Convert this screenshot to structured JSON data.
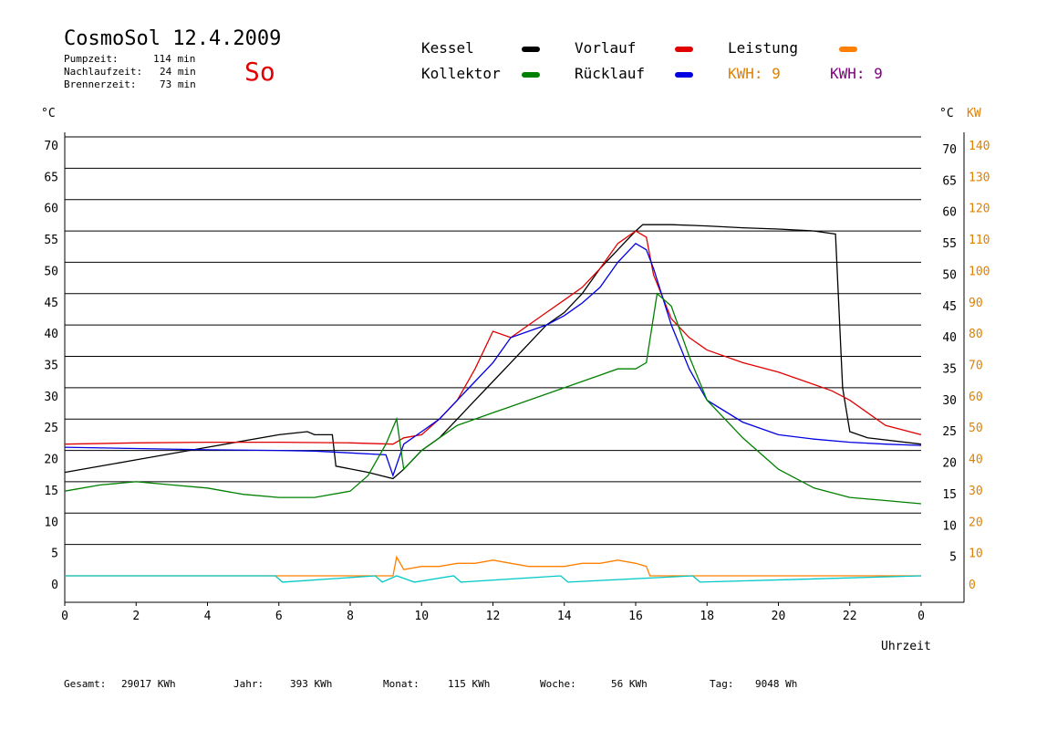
{
  "header": {
    "title": "CosmoSol 12.4.2009",
    "day": "So",
    "stats": [
      {
        "label": "Pumpzeit:",
        "value": "114 min"
      },
      {
        "label": "Nachlaufzeit:",
        "value": "24 min"
      },
      {
        "label": "Brennerzeit:",
        "value": "73 min"
      }
    ]
  },
  "legend": {
    "items": [
      {
        "label": "Kessel",
        "color": "#000000"
      },
      {
        "label": "Vorlauf",
        "color": "#e00000"
      },
      {
        "label": "Leistung",
        "color": "#ff8000"
      },
      {
        "label": "Kollektor",
        "color": "#008000"
      },
      {
        "label": "Rücklauf",
        "color": "#0000e0"
      }
    ],
    "kwh1": {
      "label": "KWH: 9",
      "color": "#e08000"
    },
    "kwh2": {
      "label": "KWH: 9",
      "color": "#800080"
    }
  },
  "axes": {
    "left_unit": "°C",
    "right_unit": "°C",
    "right_unit2": "KW",
    "x_label": "Uhrzeit"
  },
  "footer": {
    "items": [
      {
        "label": "Gesamt:",
        "value": "29017 KWh"
      },
      {
        "label": "Jahr:",
        "value": "393 KWh"
      },
      {
        "label": "Monat:",
        "value": "115 KWh"
      },
      {
        "label": "Woche:",
        "value": "56 KWh"
      },
      {
        "label": "Tag:",
        "value": "9048 Wh"
      }
    ]
  },
  "chart_data": {
    "type": "line",
    "title": "CosmoSol 12.4.2009",
    "xlabel": "Uhrzeit",
    "ylabel": "°C",
    "y2label": "KW",
    "xlim": [
      0,
      24
    ],
    "ylim": [
      0,
      70
    ],
    "x_ticks": [
      "0",
      "2",
      "4",
      "6",
      "8",
      "10",
      "12",
      "14",
      "16",
      "18",
      "20",
      "22",
      "0"
    ],
    "y_ticks_left": [
      "0",
      "5",
      "10",
      "15",
      "20",
      "25",
      "30",
      "35",
      "40",
      "45",
      "50",
      "55",
      "60",
      "65",
      "70"
    ],
    "y_ticks_right": [
      "5",
      "10",
      "15",
      "20",
      "25",
      "30",
      "35",
      "40",
      "45",
      "50",
      "55",
      "60",
      "65",
      "70"
    ],
    "y2_ticks": [
      "0",
      "10",
      "20",
      "30",
      "40",
      "50",
      "60",
      "70",
      "80",
      "90",
      "100",
      "110",
      "120",
      "130",
      "140"
    ],
    "grid": true,
    "series": [
      {
        "name": "Kessel",
        "color": "#000000",
        "x": [
          0,
          2,
          4,
          6,
          6.8,
          7,
          7.5,
          7.6,
          8.5,
          9.2,
          9.5,
          10,
          10.5,
          11,
          11.5,
          12,
          12.5,
          13,
          13.5,
          14,
          14.5,
          15,
          15.5,
          16,
          16.2,
          16.5,
          17,
          18,
          19,
          20,
          21,
          21.6,
          21.8,
          22,
          22.5,
          24
        ],
        "y": [
          16.5,
          18.5,
          20.5,
          22.5,
          23,
          22.5,
          22.5,
          17.5,
          16.5,
          15.5,
          17,
          20,
          22,
          25,
          28,
          31,
          34,
          37,
          40,
          42,
          45,
          49,
          52,
          55,
          56,
          56,
          56,
          55.8,
          55.5,
          55.3,
          55,
          54.5,
          30,
          23,
          22,
          21
        ]
      },
      {
        "name": "Vorlauf",
        "color": "#e00000",
        "x": [
          0,
          2,
          4,
          6,
          8,
          9.2,
          9.5,
          10,
          10.5,
          11,
          11.5,
          12,
          12.5,
          13,
          13.5,
          14,
          14.5,
          15,
          15.5,
          16,
          16.3,
          16.5,
          17,
          17.5,
          18,
          19,
          20,
          21,
          21.5,
          22,
          23,
          24
        ],
        "y": [
          21,
          21.2,
          21.3,
          21.3,
          21.2,
          21,
          22,
          22.5,
          25,
          28,
          33,
          39,
          38,
          40,
          42,
          44,
          46,
          49,
          53,
          55,
          54,
          48,
          41,
          38,
          36,
          34,
          32.5,
          30.5,
          29.5,
          28,
          24,
          22.5
        ]
      },
      {
        "name": "Rücklauf",
        "color": "#0000e0",
        "x": [
          0,
          2,
          4,
          6,
          7,
          8,
          9,
          9.2,
          9.5,
          10,
          10.5,
          11,
          11.5,
          12,
          12.5,
          13,
          13.5,
          14,
          14.5,
          15,
          15.5,
          16,
          16.3,
          16.5,
          17,
          17.5,
          18,
          19,
          20,
          21,
          22,
          23,
          24
        ],
        "y": [
          20.5,
          20.3,
          20.1,
          20,
          19.9,
          19.6,
          19.3,
          16,
          21,
          23,
          25,
          28,
          31,
          34,
          38,
          39,
          40,
          41.5,
          43.5,
          46,
          50,
          53,
          52,
          49,
          40,
          33,
          28,
          24.5,
          22.5,
          21.8,
          21.3,
          21,
          20.8
        ]
      },
      {
        "name": "Kollektor",
        "color": "#008000",
        "x": [
          0,
          1,
          2,
          3,
          4,
          5,
          6,
          7,
          8,
          8.5,
          9,
          9.3,
          9.5,
          10,
          10.5,
          11,
          11.5,
          12,
          12.5,
          13,
          13.5,
          14,
          14.5,
          15,
          15.5,
          16,
          16.3,
          16.6,
          17,
          17.5,
          18,
          19,
          20,
          21,
          22,
          23,
          24
        ],
        "y": [
          13.5,
          14.5,
          15,
          14.5,
          14,
          13,
          12.5,
          12.5,
          13.5,
          16,
          21,
          25,
          17,
          20,
          22,
          24,
          25,
          26,
          27,
          28,
          29,
          30,
          31,
          32,
          33,
          33,
          34,
          45,
          43,
          35,
          28,
          22,
          17,
          14,
          12.5,
          12,
          11.5
        ]
      },
      {
        "name": "Leistung",
        "color": "#ff8000",
        "x": [
          0,
          9.2,
          9.3,
          9.5,
          10,
          10.5,
          11,
          11.5,
          12,
          12.5,
          13,
          13.5,
          14,
          14.5,
          15,
          15.5,
          16,
          16.3,
          16.4,
          24
        ],
        "y": [
          0,
          0,
          3,
          1,
          1.5,
          1.5,
          2,
          2,
          2.5,
          2,
          1.5,
          1.5,
          1.5,
          2,
          2,
          2.5,
          2,
          1.5,
          0,
          0
        ]
      },
      {
        "name": "",
        "color": "#00c8c8",
        "x": [
          0,
          5.9,
          6.1,
          8.7,
          8.9,
          9.3,
          9.8,
          10.9,
          11.1,
          13.9,
          14.1,
          17.6,
          17.8,
          24
        ],
        "y": [
          0,
          0,
          -1,
          0,
          -1,
          0,
          -1,
          0,
          -1,
          0,
          -1,
          0,
          -1,
          0
        ]
      }
    ]
  }
}
